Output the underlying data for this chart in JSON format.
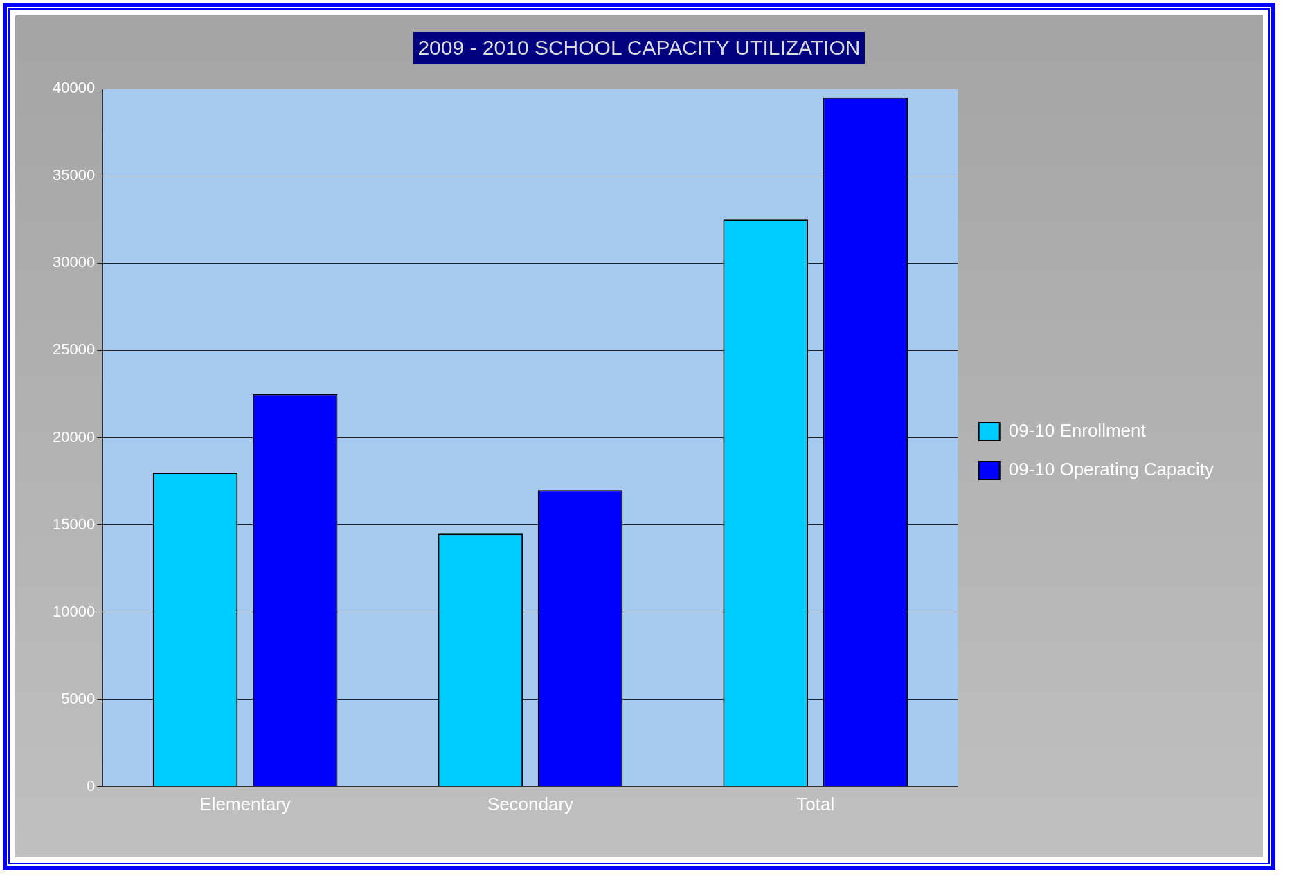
{
  "chart_data": {
    "type": "bar",
    "title": "2009 - 2010 SCHOOL CAPACITY UTILIZATION",
    "categories": [
      "Elementary",
      "Secondary",
      "Total"
    ],
    "series": [
      {
        "name": "09-10 Enrollment",
        "color": "#00ccff",
        "values": [
          18000,
          14500,
          32500
        ]
      },
      {
        "name": "09-10 Operating Capacity",
        "color": "#0000ff",
        "values": [
          22500,
          17000,
          39500
        ]
      }
    ],
    "ylim": [
      0,
      40000
    ],
    "yticks": [
      0,
      5000,
      10000,
      15000,
      20000,
      25000,
      30000,
      35000,
      40000
    ],
    "grid": "y",
    "legend": "right"
  }
}
